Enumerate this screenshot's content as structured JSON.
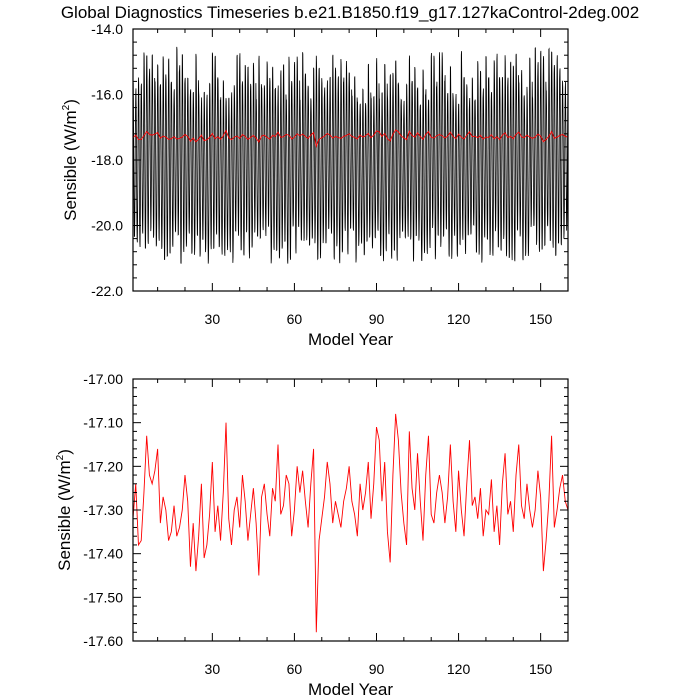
{
  "title": "Global Diagnostics Timeseries b.e21.B1850.f19_g17.127kaControl-2deg.002",
  "chart_data": [
    {
      "type": "line",
      "title": "Global Diagnostics Timeseries b.e21.B1850.f19_g17.127kaControl-2deg.002",
      "xlabel": "Model Year",
      "ylabel_main": "Sensible (W/m",
      "ylabel_sup": "2",
      "ylabel_close": ")",
      "xlim": [
        1,
        160
      ],
      "ylim": [
        -22.0,
        -14.0
      ],
      "xticks": [
        30,
        60,
        90,
        120,
        150
      ],
      "xtick_labels": [
        "30",
        "60",
        "90",
        "120",
        "150"
      ],
      "yticks": [
        -22.0,
        -20.0,
        -18.0,
        -16.0,
        -14.0
      ],
      "ytick_labels": [
        "-22.0",
        "-20.0",
        "-18.0",
        "-16.0",
        "-14.0"
      ],
      "series": [
        {
          "color": "#000000",
          "kind": "monthly",
          "annual_min_range": [
            -21.2,
            -20.1
          ],
          "annual_max_range": [
            -16.2,
            -14.5
          ]
        },
        {
          "color": "#ff0000",
          "kind": "annual",
          "values": [
            -17.32,
            -17.24,
            -17.38,
            -17.37,
            -17.26,
            -17.13,
            -17.22,
            -17.24,
            -17.21,
            -17.16,
            -17.33,
            -17.27,
            -17.3,
            -17.37,
            -17.35,
            -17.29,
            -17.36,
            -17.34,
            -17.3,
            -17.22,
            -17.28,
            -17.43,
            -17.33,
            -17.44,
            -17.36,
            -17.24,
            -17.41,
            -17.38,
            -17.31,
            -17.19,
            -17.35,
            -17.29,
            -17.37,
            -17.26,
            -17.1,
            -17.32,
            -17.38,
            -17.3,
            -17.27,
            -17.34,
            -17.22,
            -17.28,
            -17.37,
            -17.31,
            -17.25,
            -17.33,
            -17.45,
            -17.27,
            -17.24,
            -17.31,
            -17.36,
            -17.25,
            -17.28,
            -17.15,
            -17.31,
            -17.29,
            -17.22,
            -17.24,
            -17.36,
            -17.3,
            -17.2,
            -17.26,
            -17.21,
            -17.28,
            -17.34,
            -17.24,
            -17.16,
            -17.58,
            -17.37,
            -17.32,
            -17.27,
            -17.19,
            -17.24,
            -17.33,
            -17.28,
            -17.31,
            -17.34,
            -17.28,
            -17.25,
            -17.2,
            -17.28,
            -17.31,
            -17.36,
            -17.24,
            -17.3,
            -17.26,
            -17.19,
            -17.32,
            -17.24,
            -17.11,
            -17.14,
            -17.28,
            -17.19,
            -17.35,
            -17.42,
            -17.22,
            -17.08,
            -17.14,
            -17.26,
            -17.33,
            -17.38,
            -17.12,
            -17.25,
            -17.3,
            -17.17,
            -17.28,
            -17.37,
            -17.22,
            -17.13,
            -17.31,
            -17.33,
            -17.26,
            -17.22,
            -17.26,
            -17.33,
            -17.27,
            -17.15,
            -17.28,
            -17.35,
            -17.21,
            -17.3,
            -17.36,
            -17.24,
            -17.14,
            -17.29,
            -17.27,
            -17.32,
            -17.25,
            -17.36,
            -17.3,
            -17.31,
            -17.23,
            -17.35,
            -17.29,
            -17.38,
            -17.24,
            -17.17,
            -17.31,
            -17.28,
            -17.35,
            -17.22,
            -17.15,
            -17.29,
            -17.32,
            -17.24,
            -17.3,
            -17.34,
            -17.3,
            -17.21,
            -17.27,
            -17.44,
            -17.37,
            -17.28,
            -17.13,
            -17.34,
            -17.3,
            -17.25,
            -17.22,
            -17.28,
            -17.3
          ]
        }
      ]
    },
    {
      "type": "line",
      "xlabel": "Model Year",
      "ylabel_main": "Sensible (W/m",
      "ylabel_sup": "2",
      "ylabel_close": ")",
      "xlim": [
        1,
        160
      ],
      "ylim": [
        -17.6,
        -17.0
      ],
      "xticks": [
        30,
        60,
        90,
        120,
        150
      ],
      "xtick_labels": [
        "30",
        "60",
        "90",
        "120",
        "150"
      ],
      "yticks": [
        -17.6,
        -17.5,
        -17.4,
        -17.3,
        -17.2,
        -17.1,
        -17.0
      ],
      "ytick_labels": [
        "-17.60",
        "-17.50",
        "-17.40",
        "-17.30",
        "-17.20",
        "-17.10",
        "-17.00"
      ],
      "series": [
        {
          "color": "#ff0000",
          "kind": "annual",
          "same_as_top_annual": true
        }
      ]
    }
  ]
}
